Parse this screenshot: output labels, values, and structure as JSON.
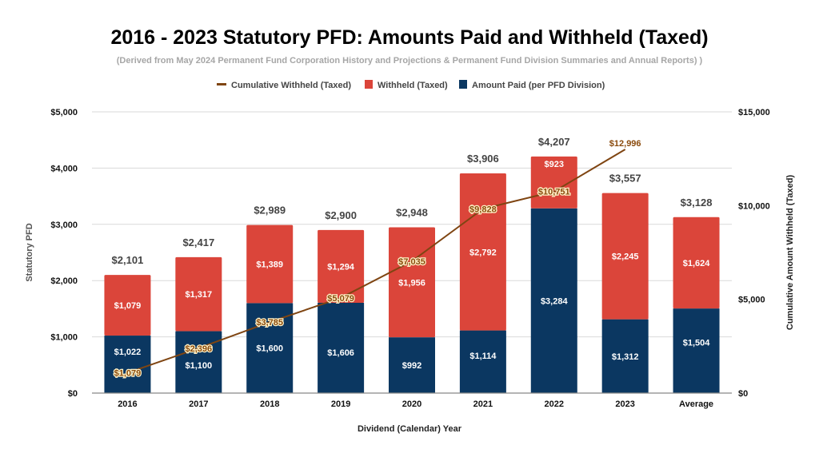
{
  "colors": {
    "amount_paid": "#0b3761",
    "withheld": "#db453a",
    "cumulative": "#7f4512",
    "gridline": "#d9d9d9",
    "axis": "#888888"
  },
  "chart_data": {
    "type": "bar",
    "stacked": true,
    "title": "2016 - 2023 Statutory PFD: Amounts Paid and Withheld (Taxed)",
    "subtitle": "(Derived from May 2024 Permanent Fund Corporation History and Projections & Permanent Fund Division Summaries and Annual Reports) )",
    "xlabel": "Dividend (Calendar) Year",
    "ylabel": "Statutory PFD",
    "y2label": "Cumulative Amount Withheld (Taxed)",
    "ylim": [
      0,
      5000
    ],
    "y2lim": [
      0,
      15000
    ],
    "yticks": [
      "$0",
      "$1,000",
      "$2,000",
      "$3,000",
      "$4,000",
      "$5,000"
    ],
    "ytick_values": [
      0,
      1000,
      2000,
      3000,
      4000,
      5000
    ],
    "y2ticks": [
      "$0",
      "$5,000",
      "$10,000",
      "$15,000"
    ],
    "y2tick_values": [
      0,
      5000,
      10000,
      15000
    ],
    "grid": true,
    "legend_position": "top-center",
    "categories": [
      "2016",
      "2017",
      "2018",
      "2019",
      "2020",
      "2021",
      "2022",
      "2023",
      "Average"
    ],
    "series": [
      {
        "name": "Amount Paid (per PFD Division)",
        "type": "bar",
        "axis": "left",
        "values": [
          1022,
          1100,
          1600,
          1606,
          992,
          1114,
          3284,
          1312,
          1504
        ],
        "labels": [
          "$1,022",
          "$1,100",
          "$1,600",
          "$1,606",
          "$992",
          "$1,114",
          "$3,284",
          "$1,312",
          "$1,504"
        ]
      },
      {
        "name": "Withheld (Taxed)",
        "type": "bar",
        "axis": "left",
        "values": [
          1079,
          1317,
          1389,
          1294,
          1956,
          2792,
          923,
          2245,
          1624
        ],
        "labels": [
          "$1,079",
          "$1,317",
          "$1,389",
          "$1,294",
          "$1,956",
          "$2,792",
          "$923",
          "$2,245",
          "$1,624"
        ]
      },
      {
        "name": "Cumulative Withheld (Taxed)",
        "type": "line",
        "axis": "right",
        "values": [
          1079,
          2396,
          3785,
          5079,
          7035,
          9828,
          10751,
          12996
        ],
        "labels": [
          "$1,079",
          "$2,396",
          "$3,785",
          "$5,079",
          "$7,035",
          "$9,828",
          "$10,751",
          "$12,996"
        ]
      }
    ],
    "totals": [
      2101,
      2417,
      2989,
      2900,
      2948,
      3906,
      4207,
      3557,
      3128
    ],
    "total_labels": [
      "$2,101",
      "$2,417",
      "$2,989",
      "$2,900",
      "$2,948",
      "$3,906",
      "$4,207",
      "$3,557",
      "$3,128"
    ],
    "legend": [
      {
        "name": "Cumulative Withheld (Taxed)",
        "marker": "line"
      },
      {
        "name": "Withheld (Taxed)",
        "marker": "square"
      },
      {
        "name": "Amount Paid (per PFD Division)",
        "marker": "square"
      }
    ]
  }
}
